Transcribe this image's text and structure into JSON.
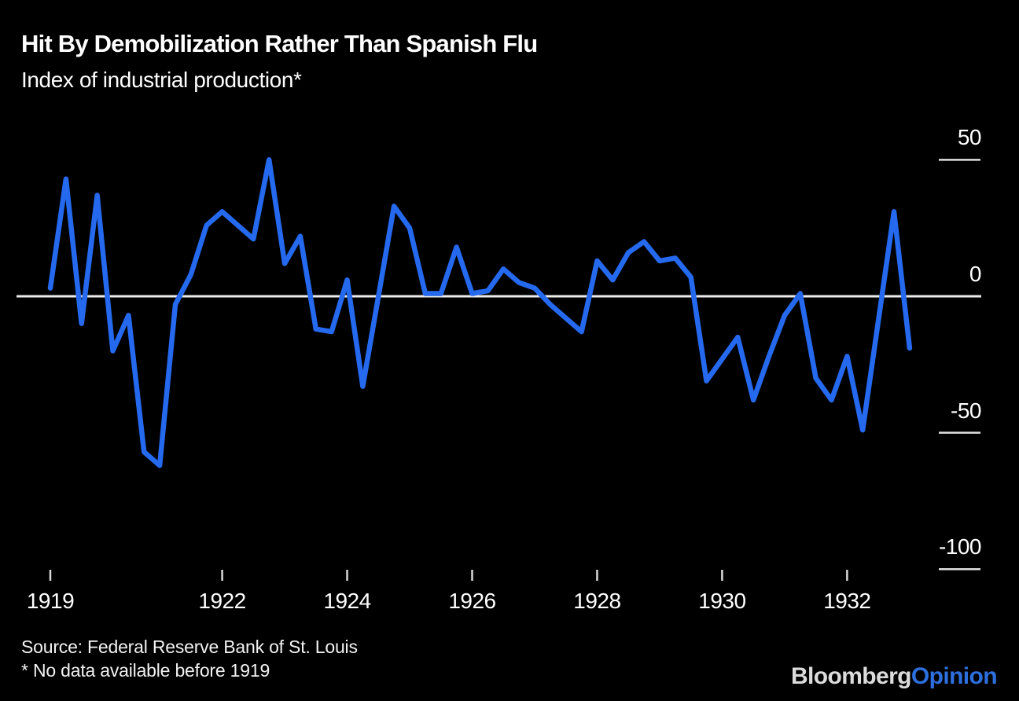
{
  "header": {
    "title": "Hit By Demobilization Rather Than Spanish Flu",
    "subtitle": "Index of industrial production*"
  },
  "footer": {
    "source": "Source: Federal Reserve Bank of St. Louis",
    "footnote": "* No data available before 1919",
    "logo": {
      "bloomberg": "Bloomberg",
      "opinion": "Opinion"
    }
  },
  "colors": {
    "background": "#000000",
    "line": "#2569ee",
    "zero_line": "#ededed",
    "y_tick_line": "#e0e0e0",
    "x_tick_mark": "#d9d9d9",
    "text": "#ffffff",
    "logo_bloomberg": "#dcdcdc",
    "logo_opinion": "#2d6fdf"
  },
  "chart_data": {
    "type": "line",
    "title": "Hit By Demobilization Rather Than Spanish Flu",
    "subtitle": "Index of industrial production*",
    "frequency": "quarterly",
    "x_start_year": 1919.25,
    "x_step_years": 0.25,
    "xlim": [
      1919.25,
      1933.0
    ],
    "ylim": [
      -100,
      50
    ],
    "grid": false,
    "zero_line": true,
    "legend": "none",
    "y_axis_side": "right",
    "series": [
      {
        "name": "Index of industrial production",
        "values": [
          3,
          43,
          -10,
          37,
          -20,
          -7,
          -57,
          -62,
          -3,
          8,
          26,
          31,
          26,
          21,
          50,
          12,
          22,
          -12,
          -13,
          6,
          -33,
          0,
          33,
          25,
          1,
          1,
          18,
          1,
          2,
          10,
          5,
          3,
          -3,
          -8,
          -13,
          13,
          6,
          16,
          20,
          13,
          14,
          7,
          -31,
          -23,
          -15,
          -38,
          -22,
          -7,
          1,
          -30,
          -38,
          -22,
          -49,
          -9,
          31,
          -19
        ]
      }
    ],
    "y_ticks": [
      {
        "value": 50,
        "label": "50"
      },
      {
        "value": 0,
        "label": "0"
      },
      {
        "value": -50,
        "label": "-50"
      },
      {
        "value": -100,
        "label": "-100"
      }
    ],
    "x_ticks": [
      {
        "year": 1919,
        "label": "1919"
      },
      {
        "year": 1922,
        "label": "1922"
      },
      {
        "year": 1924,
        "label": "1924"
      },
      {
        "year": 1926,
        "label": "1926"
      },
      {
        "year": 1928,
        "label": "1928"
      },
      {
        "year": 1930,
        "label": "1930"
      },
      {
        "year": 1932,
        "label": "1932"
      }
    ]
  }
}
